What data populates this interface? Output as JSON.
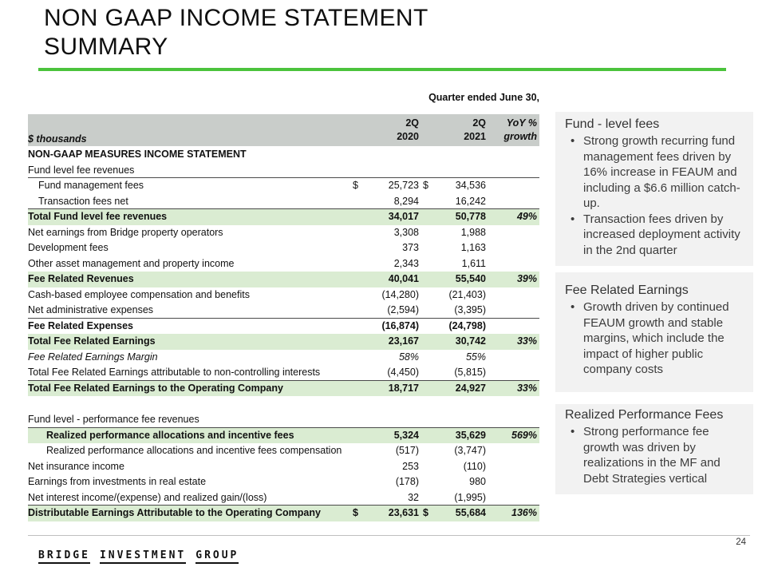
{
  "colors": {
    "green_line": "#4bc33c",
    "row_green": "#daecd2",
    "band_gray": "#c9cdca",
    "box_gray": "#f2f2f2"
  },
  "slide": {
    "title_line1": "NON GAAP INCOME STATEMENT",
    "title_line2": "SUMMARY"
  },
  "table": {
    "quarter_header": "Quarter ended June 30,",
    "unit_label": "$ thousands",
    "col_headers": [
      {
        "line1": "2Q",
        "line2": "2020"
      },
      {
        "line1": "2Q",
        "line2": "2021"
      },
      {
        "line1": "YoY %",
        "line2": "growth"
      }
    ],
    "rows": [
      {
        "label": "NON-GAAP MEASURES INCOME STATEMENT",
        "bold": true
      },
      {
        "label": "Fund level fee revenues",
        "border": true
      },
      {
        "label": "Fund management fees",
        "indent": 1,
        "v2020": "$ 25,723",
        "v2021": "$ 34,536"
      },
      {
        "label": "Transaction fees net",
        "indent": 1,
        "v2020": "8,294",
        "v2021": "16,242",
        "border": true
      },
      {
        "label": "Total Fund level fee revenues",
        "bold": true,
        "green": true,
        "v2020": "34,017",
        "v2021": "50,778",
        "yoy": "49%"
      },
      {
        "label": "Net earnings from Bridge property operators",
        "v2020": "3,308",
        "v2021": "1,988"
      },
      {
        "label": "Development fees",
        "v2020": "373",
        "v2021": "1,163"
      },
      {
        "label": "Other asset management and property income",
        "v2020": "2,343",
        "v2021": "1,611"
      },
      {
        "label": "Fee Related Revenues",
        "bold": true,
        "green": true,
        "v2020": "40,041",
        "v2021": "55,540",
        "yoy": "39%"
      },
      {
        "label": "Cash-based employee compensation and benefits",
        "v2020": "(14,280)",
        "v2021": "(21,403)"
      },
      {
        "label": "Net administrative expenses",
        "v2020": "(2,594)",
        "v2021": "(3,395)",
        "border": true
      },
      {
        "label": "Fee Related Expenses",
        "bold": true,
        "v2020": "(16,874)",
        "v2021": "(24,798)"
      },
      {
        "label": "Total Fee Related Earnings",
        "bold": true,
        "green": true,
        "v2020": "23,167",
        "v2021": "30,742",
        "yoy": "33%"
      },
      {
        "label": "Fee Related Earnings Margin",
        "italic": true,
        "v2020": "58%",
        "v2021": "55%"
      },
      {
        "label": "Total Fee Related Earnings attributable to non-controlling interests",
        "v2020": "(4,450)",
        "v2021": "(5,815)",
        "border": true
      },
      {
        "label": "Total Fee Related Earnings to the Operating Company",
        "bold": true,
        "green": true,
        "v2020": "18,717",
        "v2021": "24,927",
        "yoy": "33%"
      },
      {
        "type": "spacer"
      },
      {
        "label": "Fund level - performance fee revenues",
        "border": true
      },
      {
        "label": "Realized performance allocations and incentive fees",
        "indent": 2,
        "bold": true,
        "green": true,
        "v2020": "5,324",
        "v2021": "35,629",
        "yoy": "569%"
      },
      {
        "label": "Realized performance allocations and incentive fees compensation",
        "indent": 2,
        "v2020": "(517)",
        "v2021": "(3,747)"
      },
      {
        "label": "Net insurance income",
        "v2020": "253",
        "v2021": "(110)"
      },
      {
        "label": "Earnings from investments in real estate",
        "v2020": "(178)",
        "v2021": "980"
      },
      {
        "label": "Net interest income/(expense) and realized gain/(loss)",
        "v2020": "32",
        "v2021": "(1,995)",
        "border": true
      },
      {
        "label": "Distributable Earnings Attributable to the Operating Company",
        "bold": true,
        "green": true,
        "v2020": "$ 23,631",
        "v2021": "$ 55,684",
        "yoy": "136%"
      }
    ]
  },
  "sidebar": {
    "boxes": [
      {
        "title": "Fund - level fees",
        "bullets": [
          "Strong growth recurring fund management fees driven by 16% increase in FEAUM and including a $6.6 million catch-up.",
          "Transaction fees driven by increased deployment activity in the 2nd quarter"
        ]
      },
      {
        "title": "Fee Related Earnings",
        "bullets": [
          "Growth driven by continued FEAUM growth and stable margins, which include the impact of higher public company costs"
        ]
      },
      {
        "title": "Realized Performance Fees",
        "bullets": [
          "Strong performance fee growth was driven by realizations in the MF and Debt Strategies vertical"
        ]
      }
    ]
  },
  "footer": {
    "logo_words": [
      "BRIDGE",
      "INVESTMENT",
      "GROUP"
    ],
    "page_number": "24"
  }
}
